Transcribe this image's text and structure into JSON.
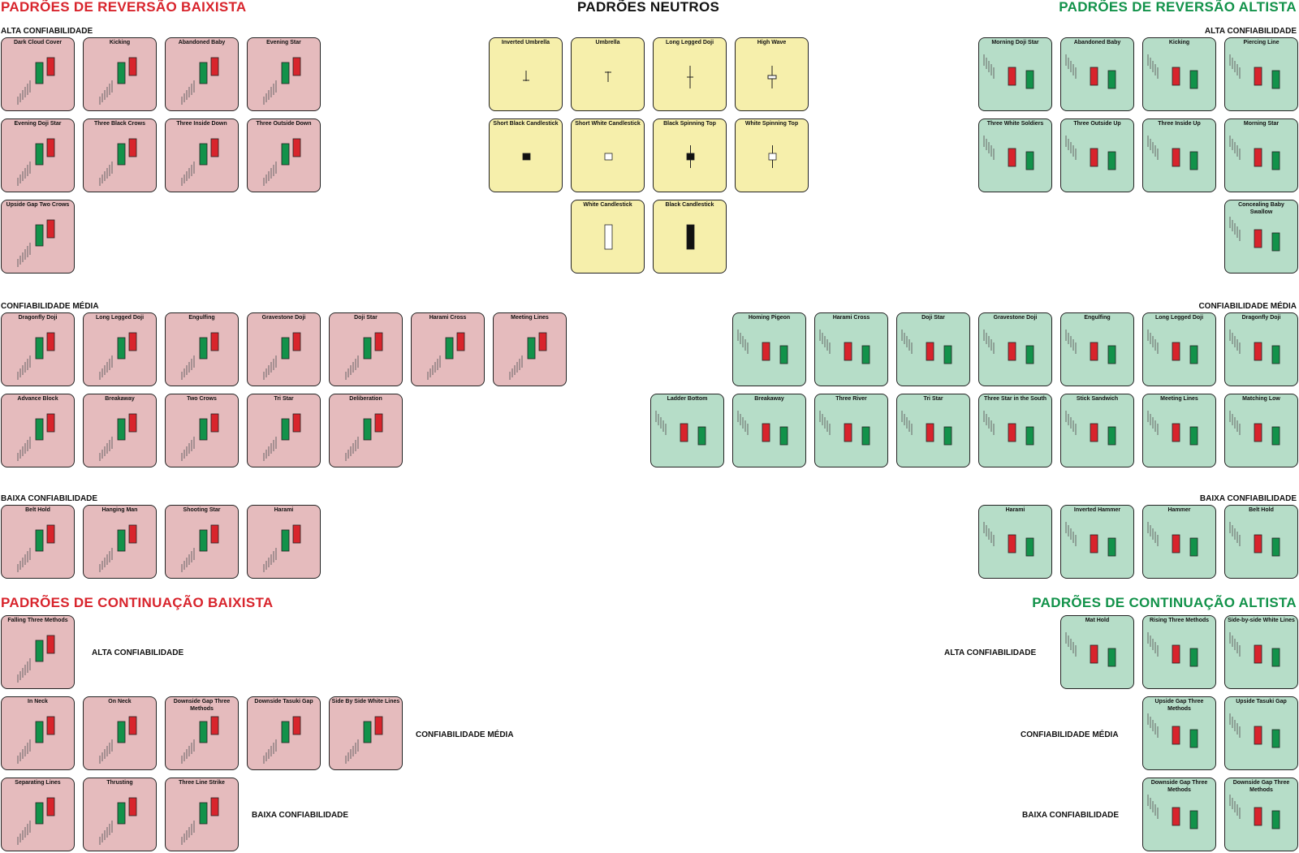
{
  "headings": {
    "bearish_reversal": "PADRÕES DE REVERSÃO BAIXISTA",
    "neutral": "PADRÕES NEUTROS",
    "bullish_reversal": "PADRÕES DE REVERSÃO ALTISTA",
    "bearish_continuation": "PADRÕES DE CONTINUAÇÃO BAIXISTA",
    "bullish_continuation": "PADRÕES DE CONTINUAÇÃO ALTISTA"
  },
  "sublabels": {
    "high": "ALTA CONFIABILIDADE",
    "medium": "CONFIABILIDADE MÉDIA",
    "low": "BAIXA CONFIABILIDADE"
  },
  "colors": {
    "bearish_card": "#e5bbbd",
    "bullish_card": "#b6ddc8",
    "neutral_card": "#f6efab",
    "bear_candle": "#d8242c",
    "bull_candle": "#12924a",
    "bearish_heading": "#d8242c",
    "bullish_heading": "#12924a"
  },
  "sections": {
    "bearish_reversal_high": [
      "Dark Cloud Cover",
      "Kicking",
      "Abandoned Baby",
      "Evening Star",
      "Evening Doji Star",
      "Three Black Crows",
      "Three Inside Down",
      "Three Outside Down",
      "Upside Gap Two Crows"
    ],
    "neutral": [
      "Inverted Umbrella",
      "Umbrella",
      "Long Legged Doji",
      "High Wave",
      "Short Black Candlestick",
      "Short White Candlestick",
      "Black Spinning Top",
      "White Spinning Top",
      "White Candlestick",
      "Black Candlestick"
    ],
    "bullish_reversal_high": [
      "Morning Doji Star",
      "Abandoned Baby",
      "Kicking",
      "Piercing Line",
      "Three White Soldiers",
      "Three Outside Up",
      "Three Inside Up",
      "Morning Star",
      "Concealing Baby Swallow"
    ],
    "bearish_reversal_medium": [
      "Dragonfly Doji",
      "Long Legged Doji",
      "Engulfing",
      "Gravestone Doji",
      "Doji Star",
      "Harami Cross",
      "Meeting Lines",
      "Advance Block",
      "Breakaway",
      "Two Crows",
      "Tri Star",
      "Deliberation"
    ],
    "bullish_reversal_medium": [
      "Homing Pigeon",
      "Harami Cross",
      "Doji Star",
      "Gravestone Doji",
      "Engulfing",
      "Long Legged Doji",
      "Dragonfly Doji",
      "Ladder Bottom",
      "Breakaway",
      "Three River",
      "Tri Star",
      "Three Star in the South",
      "Stick Sandwich",
      "Meeting Lines",
      "Matching Low"
    ],
    "bearish_reversal_low": [
      "Belt Hold",
      "Hanging Man",
      "Shooting Star",
      "Harami"
    ],
    "bullish_reversal_low": [
      "Harami",
      "Inverted Hammer",
      "Hammer",
      "Belt Hold"
    ],
    "bearish_continuation_high": [
      "Falling Three Methods"
    ],
    "bearish_continuation_medium": [
      "In Neck",
      "On Neck",
      "Downside Gap Three Methods",
      "Downside Tasuki Gap",
      "Side By Side White Lines"
    ],
    "bearish_continuation_low": [
      "Separating Lines",
      "Thrusting",
      "Three Line Strike"
    ],
    "bullish_continuation_high": [
      "Mat Hold",
      "Rising Three Methods",
      "Side-by-side White Lines"
    ],
    "bullish_continuation_medium": [
      "Upside Gap Three Methods",
      "Upside Tasuki Gap"
    ],
    "bullish_continuation_low": [
      "Downside Gap Three Methods",
      "Downside Gap Three Methods"
    ]
  }
}
